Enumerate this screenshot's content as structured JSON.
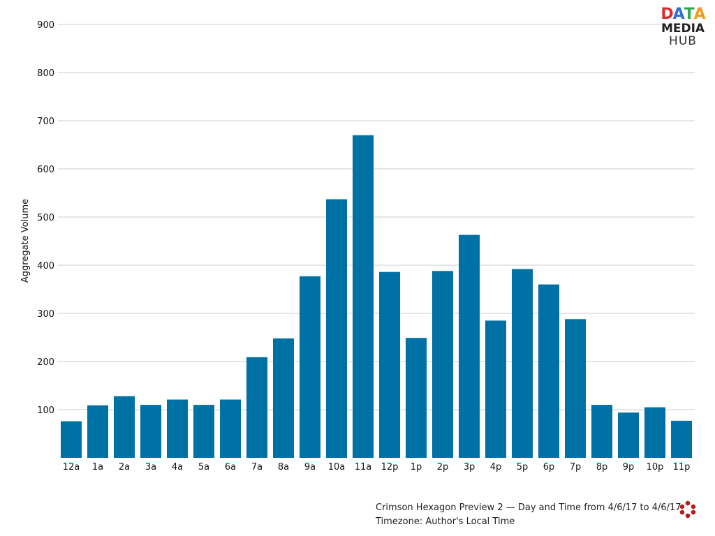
{
  "logo": {
    "line1": [
      "D",
      "A",
      "T",
      "A"
    ],
    "line1_colors": [
      "#e02b2b",
      "#2c6fd1",
      "#2fa84f",
      "#f29b1d"
    ],
    "line2": "MEDIA",
    "line3": "HUB"
  },
  "footer": {
    "line1": "Crimson Hexagon Preview 2 — Day and Time from 4/6/17 to 4/6/17",
    "line2": "Timezone: Author's Local Time",
    "icon": "hexagon-cluster-icon",
    "icon_color": "#b71c1c"
  },
  "colors": {
    "bar": "#0071a4",
    "grid": "#cccccc"
  },
  "chart_data": {
    "type": "bar",
    "categories": [
      "12a",
      "1a",
      "2a",
      "3a",
      "4a",
      "5a",
      "6a",
      "7a",
      "8a",
      "9a",
      "10a",
      "11a",
      "12p",
      "1p",
      "2p",
      "3p",
      "4p",
      "5p",
      "6p",
      "7p",
      "8p",
      "9p",
      "10p",
      "11p"
    ],
    "values": [
      76,
      109,
      128,
      110,
      121,
      110,
      121,
      209,
      248,
      377,
      537,
      670,
      386,
      249,
      388,
      463,
      285,
      392,
      360,
      288,
      110,
      94,
      105,
      77
    ],
    "title": "",
    "xlabel": "",
    "ylabel": "Aggregate Volume",
    "ylim": [
      0,
      900
    ],
    "yticks": [
      100,
      200,
      300,
      400,
      500,
      600,
      700,
      800,
      900
    ],
    "grid": true,
    "legend": "none"
  }
}
